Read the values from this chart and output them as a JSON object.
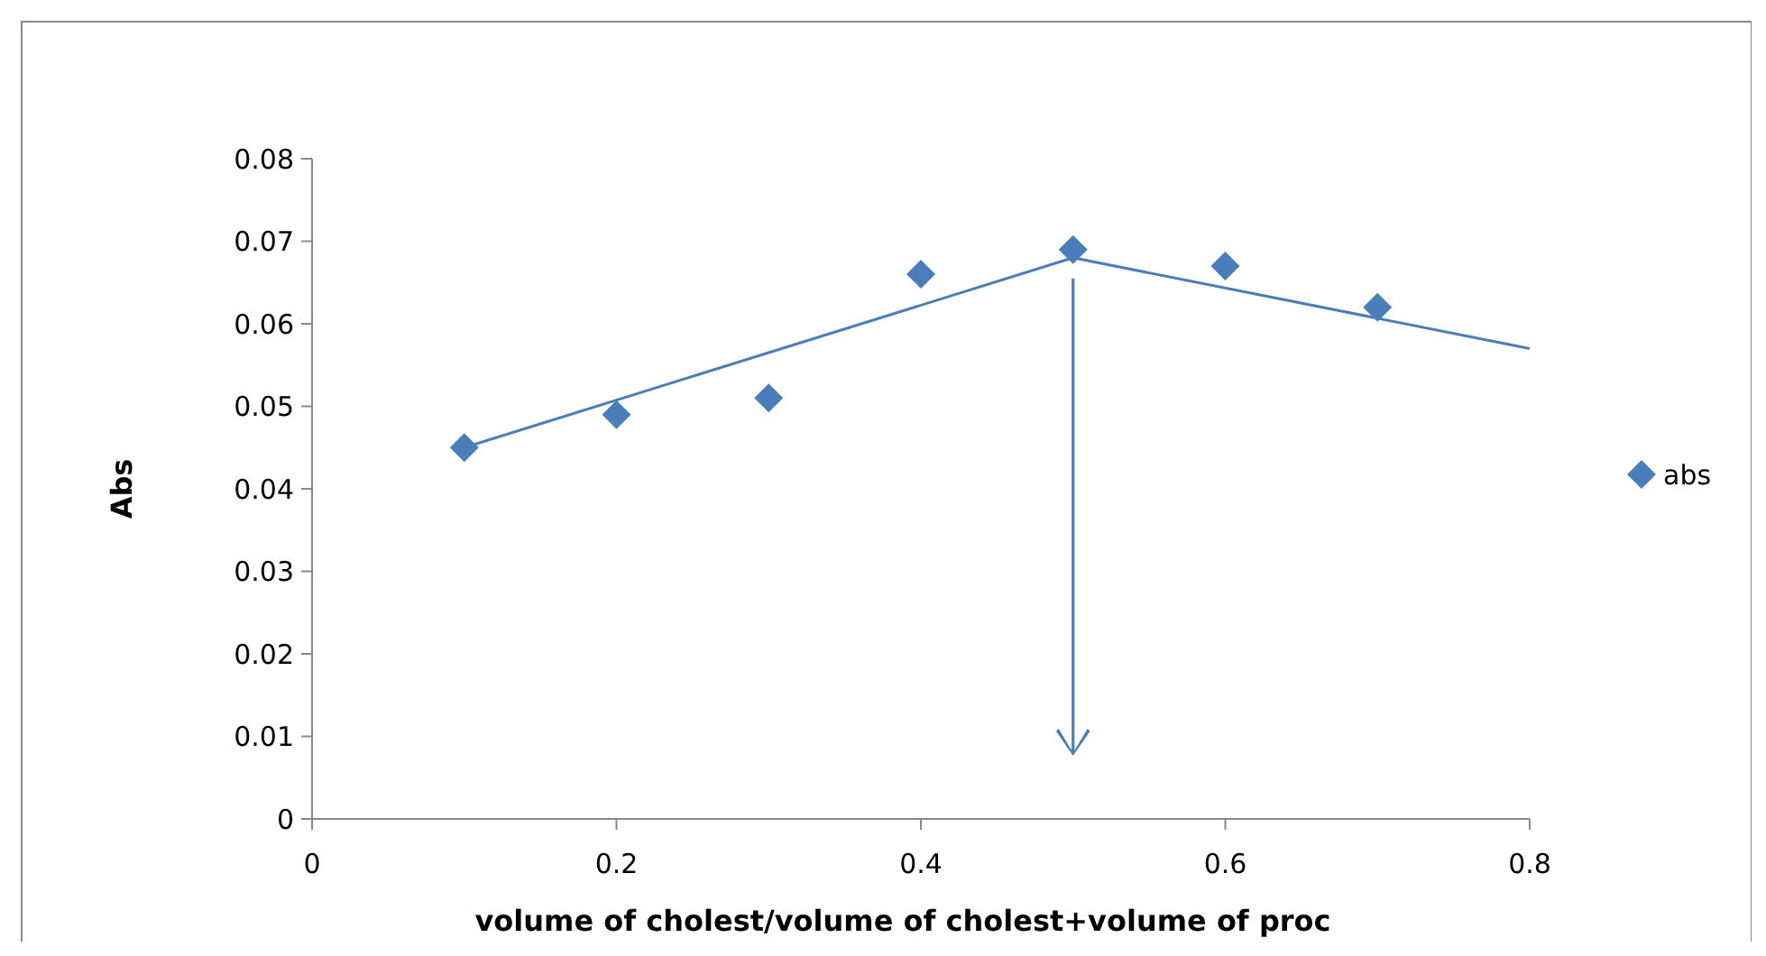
{
  "chart_data": {
    "type": "scatter",
    "xlabel": "volume of cholest/volume of cholest+volume of proc",
    "ylabel": "Abs",
    "x": [
      0.1,
      0.2,
      0.3,
      0.4,
      0.5,
      0.6,
      0.7
    ],
    "series": [
      {
        "name": "abs",
        "color": "#4a7ebb",
        "values": [
          0.045,
          0.049,
          0.051,
          0.066,
          0.069,
          0.067,
          0.062
        ],
        "marker": "diamond"
      },
      {
        "type": "line",
        "color": "#4a7ebb",
        "x": [
          0.1,
          0.5
        ],
        "values": [
          0.045,
          0.068
        ],
        "marker": "none",
        "line_style": "solid"
      },
      {
        "type": "line",
        "color": "#4a7ebb",
        "x": [
          0.5,
          0.8
        ],
        "values": [
          0.068,
          0.057
        ],
        "marker": "none",
        "line_style": "solid"
      }
    ],
    "xlim": [
      0,
      0.8
    ],
    "xticks": [
      0,
      0.2,
      0.4,
      0.6,
      0.8
    ],
    "ylim": [
      0,
      0.08
    ],
    "yticks": [
      0,
      0.01,
      0.02,
      0.03,
      0.04,
      0.05,
      0.06,
      0.07,
      0.08
    ],
    "grid": false,
    "legend": "right"
  }
}
